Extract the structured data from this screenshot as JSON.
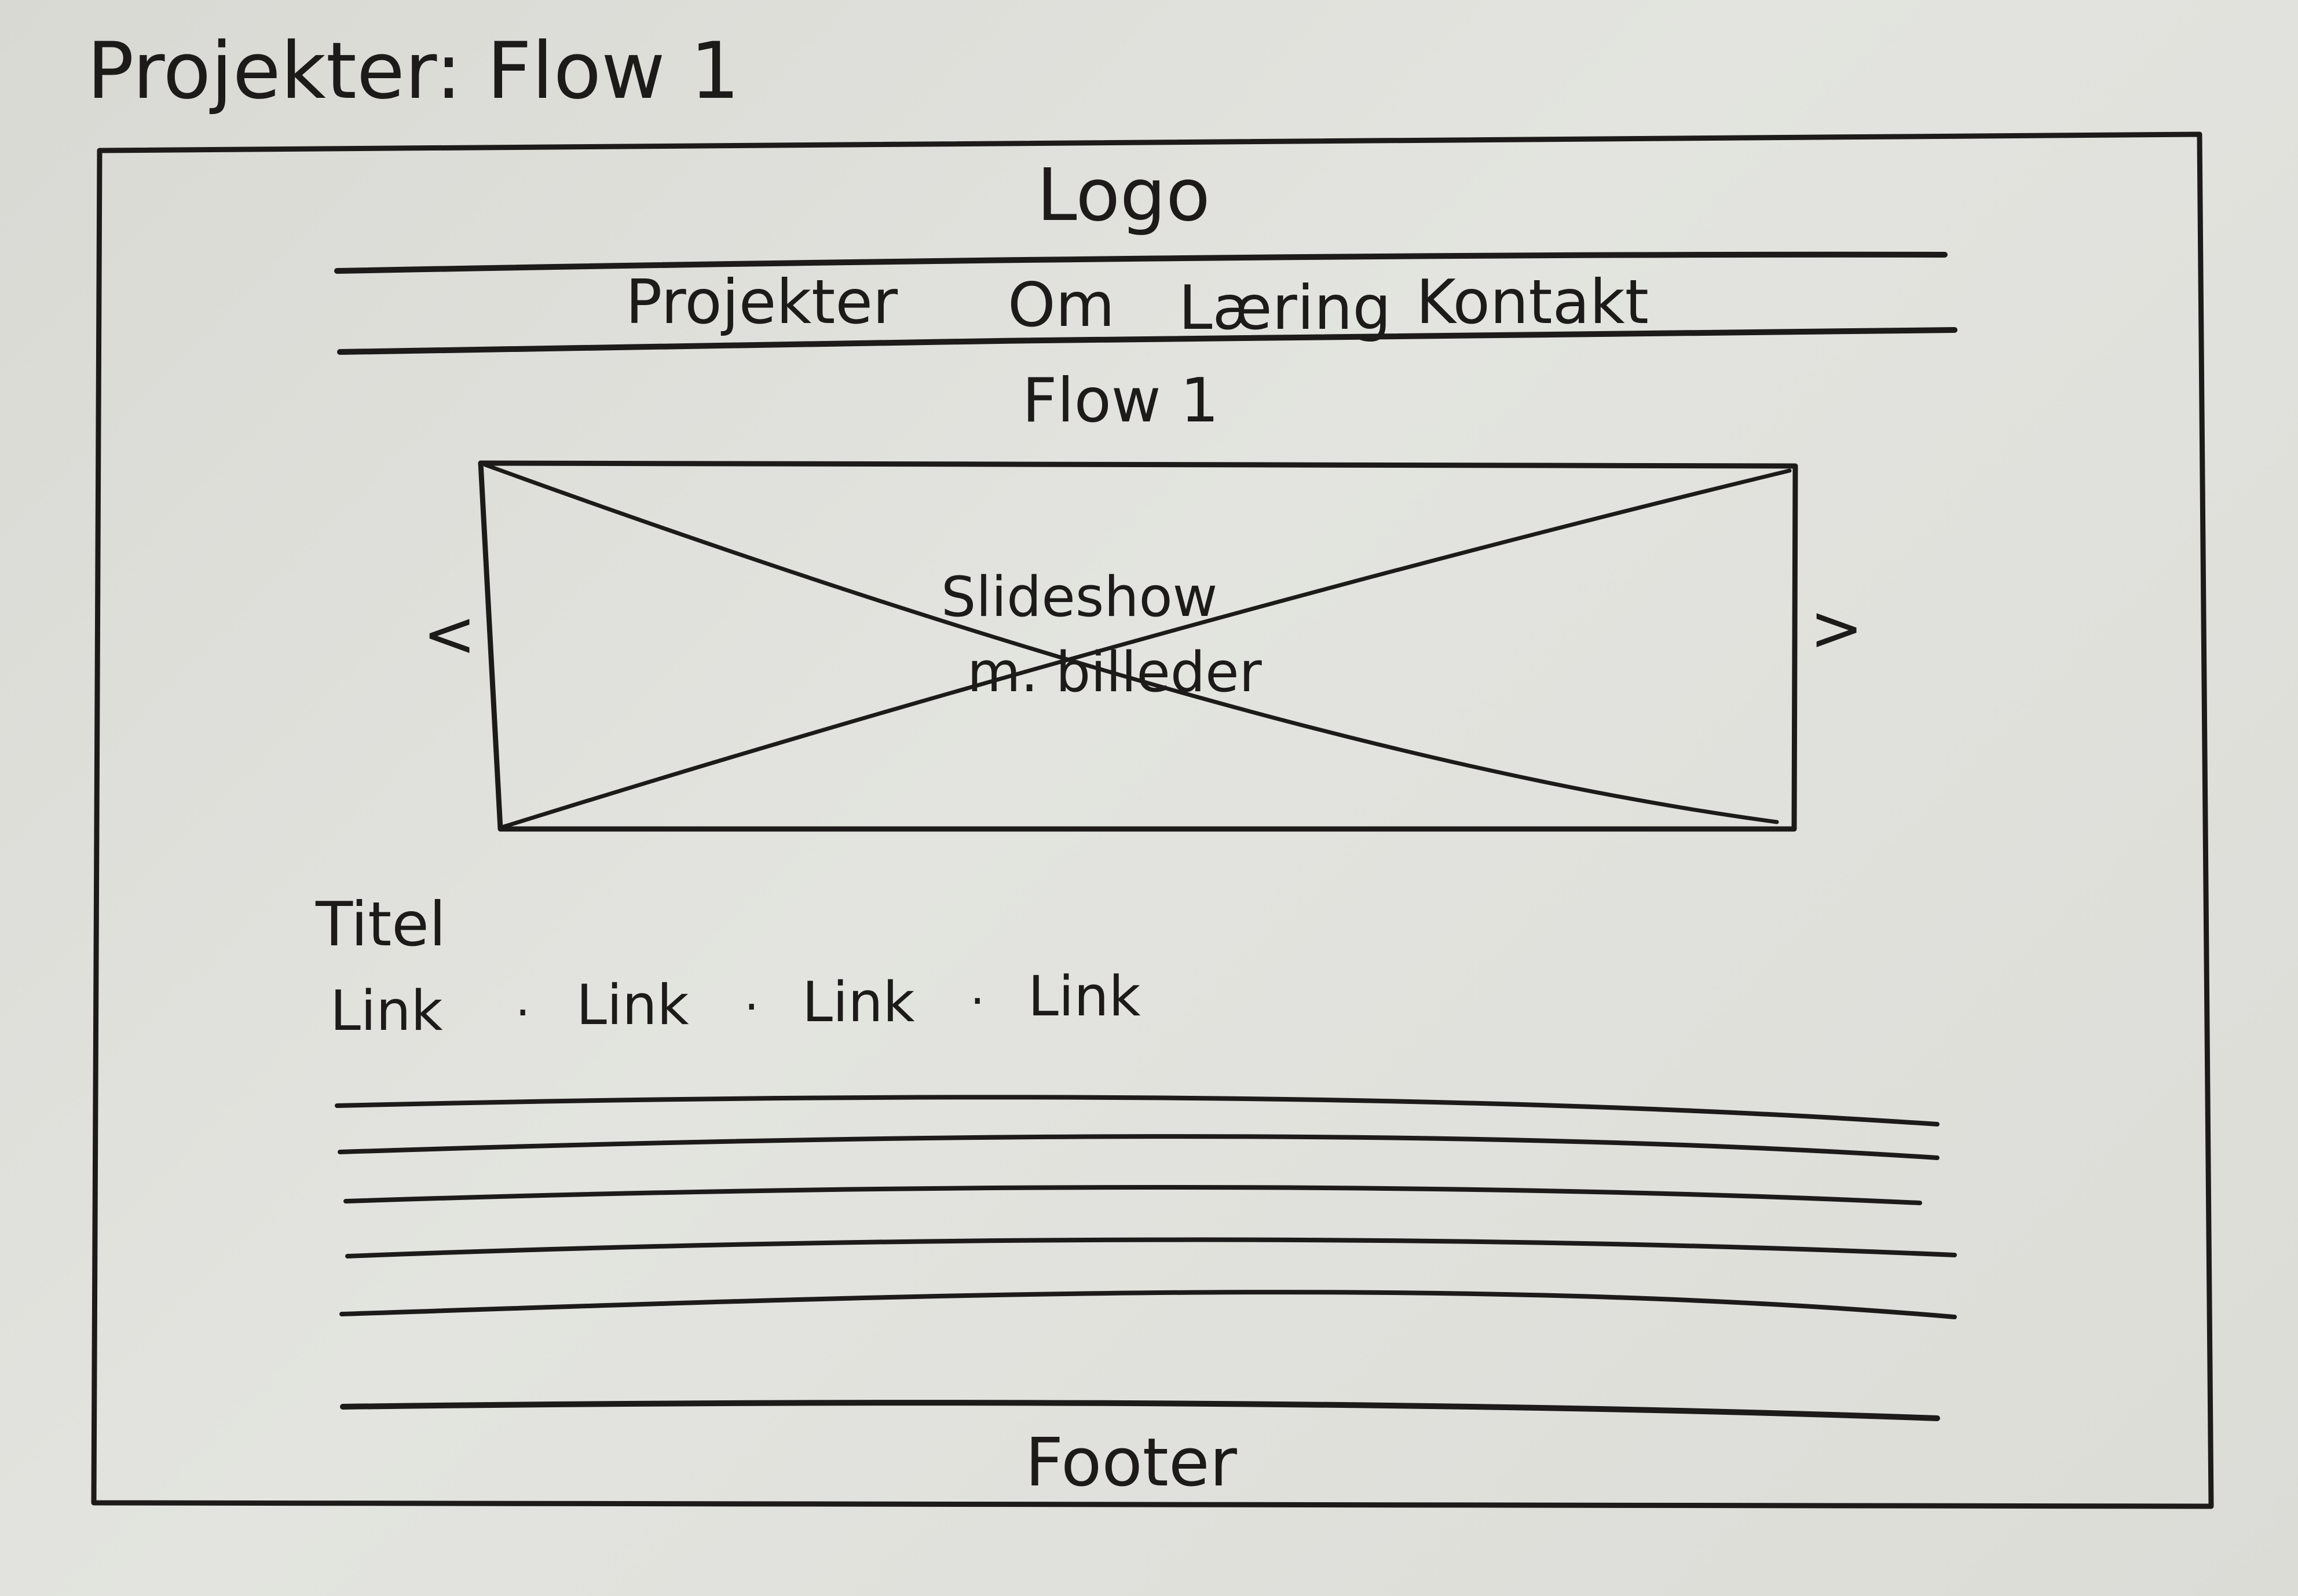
{
  "page_heading": "Projekter:  Flow 1",
  "header": {
    "logo": "Logo"
  },
  "nav": {
    "items": [
      {
        "label": "Projekter"
      },
      {
        "label": "Om"
      },
      {
        "label": "Læring"
      },
      {
        "label": "Kontakt"
      }
    ]
  },
  "main": {
    "project_title": "Flow 1",
    "slideshow": {
      "line_1": "Slideshow",
      "line_2": "m. billeder",
      "prev": "<",
      "next": ">"
    },
    "section_title": "Titel",
    "links": [
      {
        "label": "Link"
      },
      {
        "label": "Link"
      },
      {
        "label": "Link"
      },
      {
        "label": "Link"
      }
    ],
    "link_separator": "·"
  },
  "footer": {
    "label": "Footer"
  },
  "colors": {
    "ink": "#1d1b1a",
    "paper": "#dfe0db"
  }
}
